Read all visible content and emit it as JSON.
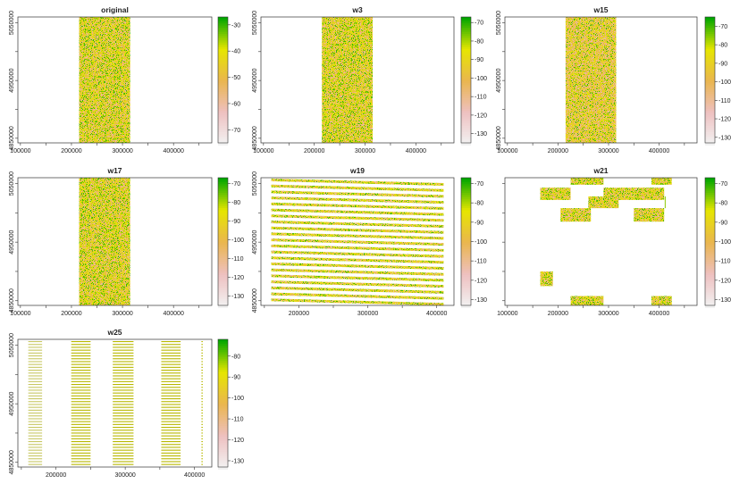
{
  "chart_data": [
    {
      "type": "heatmap",
      "title": "original",
      "pattern": "band",
      "x_ticks": [
        "100000",
        "200000",
        "300000",
        "400000"
      ],
      "y_ticks": [
        "5050000",
        "4950000",
        "4850000"
      ],
      "xlim": [
        95000,
        475000
      ],
      "ylim": [
        4842000,
        5060000
      ],
      "data_extent": {
        "x": [
          215000,
          315000
        ],
        "y": [
          4842000,
          5060000
        ]
      },
      "legend": {
        "ticks": [
          "-30",
          "-40",
          "-50",
          "-60",
          "-70"
        ],
        "values": [
          -30,
          -40,
          -50,
          -60,
          -70
        ],
        "range": [
          -27,
          -75
        ]
      },
      "colorscale": [
        "#00a600",
        "#e6e600",
        "#eab64f",
        "#eec0c0",
        "#f2f2f2"
      ]
    },
    {
      "type": "heatmap",
      "title": "w3",
      "pattern": "band",
      "x_ticks": [
        "100000",
        "200000",
        "300000",
        "400000"
      ],
      "y_ticks": [
        "5050000",
        "4950000",
        "4850000"
      ],
      "xlim": [
        95000,
        475000
      ],
      "ylim": [
        4842000,
        5060000
      ],
      "data_extent": {
        "x": [
          215000,
          315000
        ],
        "y": [
          4842000,
          5060000
        ]
      },
      "legend": {
        "ticks": [
          "-70",
          "-80",
          "-90",
          "-100",
          "-110",
          "-120",
          "-130"
        ],
        "values": [
          -70,
          -80,
          -90,
          -100,
          -110,
          -120,
          -130
        ],
        "range": [
          -67,
          -135
        ]
      },
      "colorscale": [
        "#00a600",
        "#e6e600",
        "#eab64f",
        "#eec0c0",
        "#f2f2f2"
      ]
    },
    {
      "type": "heatmap",
      "title": "w15",
      "pattern": "band",
      "x_ticks": [
        "100000",
        "200000",
        "300000",
        "400000"
      ],
      "y_ticks": [
        "5050000",
        "4950000",
        "4850000"
      ],
      "xlim": [
        95000,
        475000
      ],
      "ylim": [
        4842000,
        5060000
      ],
      "data_extent": {
        "x": [
          215000,
          315000
        ],
        "y": [
          4842000,
          5060000
        ]
      },
      "legend": {
        "ticks": [
          "-70",
          "-80",
          "-90",
          "-100",
          "-110",
          "-120",
          "-130"
        ],
        "values": [
          -70,
          -80,
          -90,
          -100,
          -110,
          -120,
          -130
        ],
        "range": [
          -65,
          -133
        ]
      },
      "colorscale": [
        "#00a600",
        "#e6e600",
        "#eab64f",
        "#eec0c0",
        "#f2f2f2"
      ]
    },
    {
      "type": "heatmap",
      "title": "w17",
      "pattern": "band",
      "x_ticks": [
        "100000",
        "200000",
        "300000",
        "400000"
      ],
      "y_ticks": [
        "5050000",
        "4950000",
        "4850000"
      ],
      "xlim": [
        95000,
        475000
      ],
      "ylim": [
        4842000,
        5060000
      ],
      "data_extent": {
        "x": [
          215000,
          315000
        ],
        "y": [
          4842000,
          5060000
        ]
      },
      "legend": {
        "ticks": [
          "-70",
          "-80",
          "-90",
          "-100",
          "-110",
          "-120",
          "-130"
        ],
        "values": [
          -70,
          -80,
          -90,
          -100,
          -110,
          -120,
          -130
        ],
        "range": [
          -67,
          -135
        ]
      },
      "colorscale": [
        "#00a600",
        "#e6e600",
        "#eab64f",
        "#eec0c0",
        "#f2f2f2"
      ]
    },
    {
      "type": "heatmap",
      "title": "w19",
      "pattern": "stripes",
      "x_ticks": [
        "200000",
        "300000",
        "400000"
      ],
      "y_ticks": [
        "5050000",
        "4950000",
        "4850000"
      ],
      "xlim": [
        145000,
        425000
      ],
      "ylim": [
        4842000,
        5060000
      ],
      "data_extent": {
        "x": [
          160000,
          410000
        ],
        "y": [
          4842000,
          5060000
        ]
      },
      "legend": {
        "ticks": [
          "-70",
          "-80",
          "-90",
          "-100",
          "-110",
          "-120",
          "-130"
        ],
        "values": [
          -70,
          -80,
          -90,
          -100,
          -110,
          -120,
          -130
        ],
        "range": [
          -67,
          -133
        ]
      },
      "colorscale": [
        "#00a600",
        "#e6e600",
        "#eab64f",
        "#eec0c0",
        "#f2f2f2"
      ]
    },
    {
      "type": "heatmap",
      "title": "w21",
      "pattern": "blocks",
      "x_ticks": [
        "100000",
        "200000",
        "300000",
        "400000"
      ],
      "y_ticks": [],
      "xlim": [
        95000,
        475000
      ],
      "ylim": [
        4842000,
        5060000
      ],
      "data_extent": {
        "x": [
          160000,
          425000
        ],
        "y": [
          4842000,
          5060000
        ]
      },
      "legend": {
        "ticks": [
          "-70",
          "-80",
          "-90",
          "-100",
          "-110",
          "-120",
          "-130"
        ],
        "values": [
          -70,
          -80,
          -90,
          -100,
          -110,
          -120,
          -130
        ],
        "range": [
          -67,
          -133
        ]
      },
      "colorscale": [
        "#00a600",
        "#e6e600",
        "#eab64f",
        "#eec0c0",
        "#f2f2f2"
      ]
    },
    {
      "type": "heatmap",
      "title": "w25",
      "pattern": "columns",
      "x_ticks": [
        "200000",
        "300000",
        "400000"
      ],
      "y_ticks": [
        "5050000",
        "4950000",
        "4850000"
      ],
      "xlim": [
        145000,
        425000
      ],
      "ylim": [
        4842000,
        5060000
      ],
      "data_extent": {
        "x": [
          160000,
          410000
        ],
        "y": [
          4842000,
          5060000
        ]
      },
      "legend": {
        "ticks": [
          "-80",
          "-90",
          "-100",
          "-110",
          "-120",
          "-130"
        ],
        "values": [
          -80,
          -90,
          -100,
          -110,
          -120,
          -130
        ],
        "range": [
          -72,
          -133
        ]
      },
      "colorscale": [
        "#00a600",
        "#e6e600",
        "#eab64f",
        "#eec0c0",
        "#f2f2f2"
      ]
    }
  ]
}
